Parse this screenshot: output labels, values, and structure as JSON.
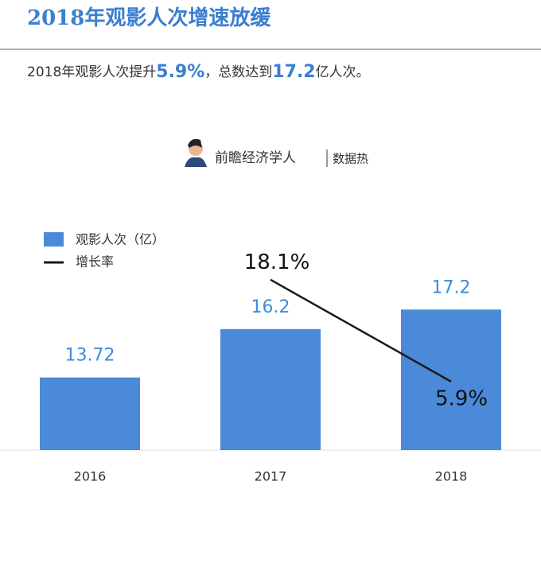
{
  "header": {
    "title": "2018年观影人次增速放缓",
    "subtitle": [
      "2018年观影人次提升",
      "5.9%",
      "，总数达到",
      "17.2",
      "亿人次。"
    ],
    "brand": "前瞻经济学人",
    "brand_tag": "数据热"
  },
  "chart_data": {
    "type": "bar_line",
    "categories": [
      "2016",
      "2017",
      "2018"
    ],
    "series": [
      {
        "name": "观影人次（亿）",
        "color": "#4a8ad8",
        "values": [
          13.72,
          16.2,
          17.2
        ]
      },
      {
        "name": "增长率",
        "color": "#1a1a1a",
        "axis": "y2",
        "values": [
          null,
          18.1,
          5.9
        ],
        "value_labels": [
          null,
          "18.1%",
          "5.9%"
        ]
      }
    ],
    "ylim": [
      10,
      21
    ],
    "y2lim": [
      -2.3,
      23.4
    ],
    "legend": "top-left"
  }
}
